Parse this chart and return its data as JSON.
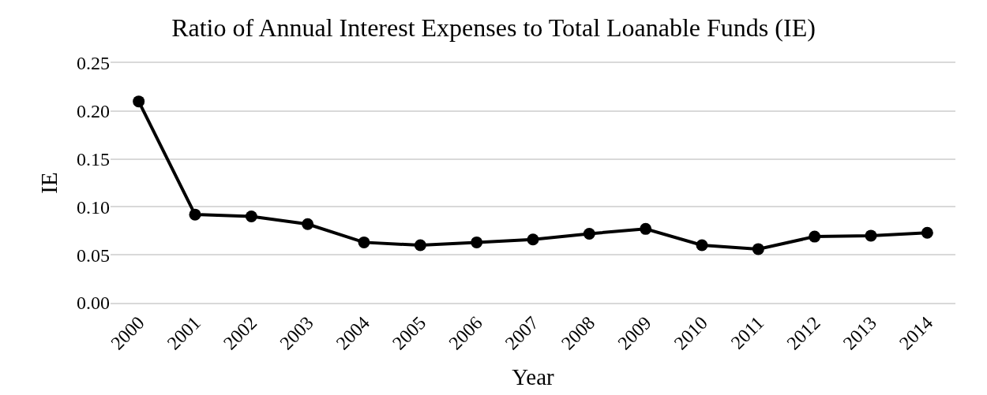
{
  "chart_data": {
    "type": "line",
    "title": "Ratio of Annual Interest Expenses to Total Loanable Funds (IE)",
    "xlabel": "Year",
    "ylabel": "IE",
    "categories": [
      "2000",
      "2001",
      "2002",
      "2003",
      "2004",
      "2005",
      "2006",
      "2007",
      "2008",
      "2009",
      "2010",
      "2011",
      "2012",
      "2013",
      "2014"
    ],
    "series": [
      {
        "color": "#000000",
        "values": [
          0.21,
          0.092,
          0.09,
          0.082,
          0.063,
          0.06,
          0.063,
          0.066,
          0.072,
          0.077,
          0.06,
          0.056,
          0.069,
          0.07,
          0.073
        ]
      }
    ],
    "ylim": [
      0,
      0.25
    ],
    "yticks": [
      {
        "value": 0,
        "label": "0.00"
      },
      {
        "value": 0.05,
        "label": "0.05"
      },
      {
        "value": 0.1,
        "label": "0.10"
      },
      {
        "value": 0.15,
        "label": "0.15"
      },
      {
        "value": 0.2,
        "label": "0.20"
      },
      {
        "value": 0.25,
        "label": "0.25"
      }
    ],
    "grid": "y",
    "marker": "circle",
    "line_style": "solid"
  }
}
